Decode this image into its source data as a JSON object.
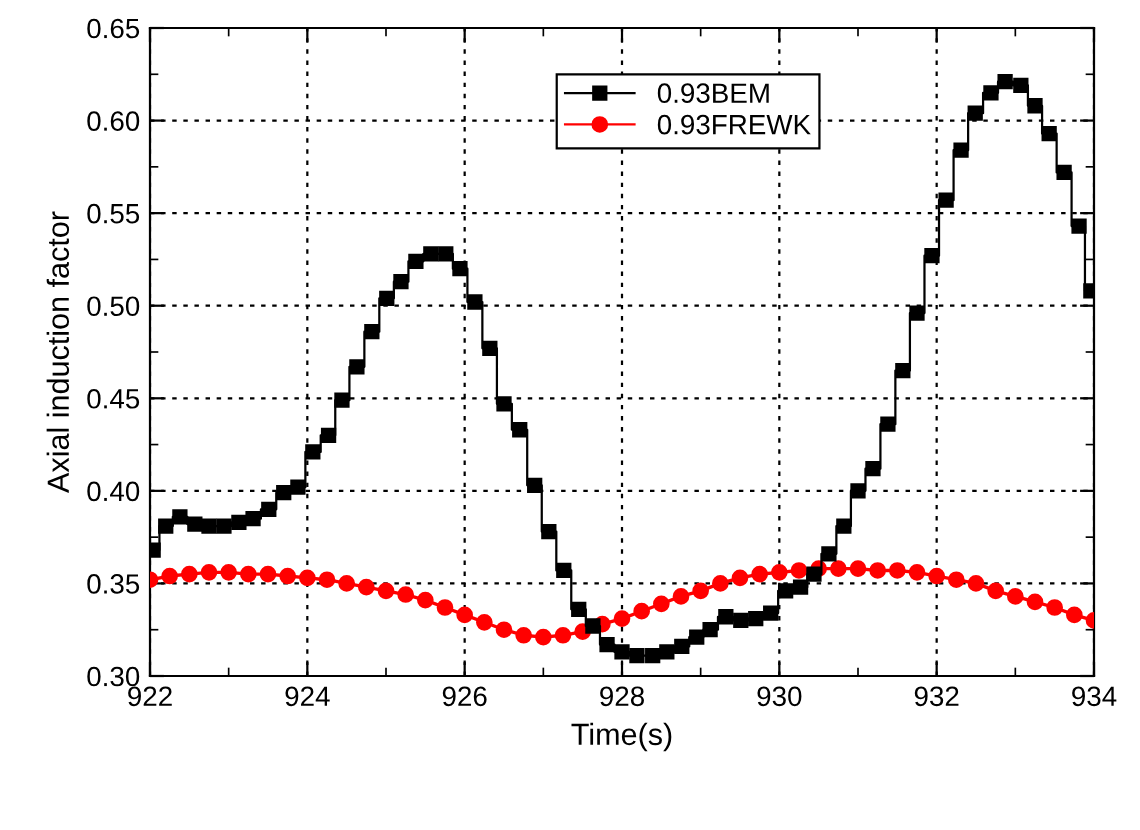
{
  "chart_data": {
    "type": "line",
    "xlabel": "Time(s)",
    "ylabel": "Axial induction factor",
    "xlim": [
      922,
      934
    ],
    "xticks": [
      922,
      924,
      926,
      928,
      930,
      932,
      934
    ],
    "ylim": [
      0.3,
      0.65
    ],
    "yticks": [
      {
        "value": 0.3,
        "label": "0.30"
      },
      0.35,
      {
        "value": 0.4,
        "label": "0.40"
      },
      0.45,
      {
        "value": 0.5,
        "label": "0.50"
      },
      0.55,
      {
        "value": 0.6,
        "label": "0.60"
      },
      0.65
    ],
    "grid": true,
    "legend": "top",
    "series": [
      {
        "name": "0.93BEM",
        "type": "step",
        "marker": "square",
        "color": "#000000",
        "x": [
          922.04,
          922.2,
          922.38,
          922.57,
          922.75,
          922.94,
          923.13,
          923.31,
          923.51,
          923.7,
          923.88,
          924.07,
          924.27,
          924.44,
          924.63,
          924.82,
          925.01,
          925.19,
          925.38,
          925.57,
          925.76,
          925.94,
          926.13,
          926.32,
          926.5,
          926.7,
          926.89,
          927.07,
          927.26,
          927.45,
          927.63,
          927.81,
          928.0,
          928.19,
          928.39,
          928.57,
          928.76,
          928.95,
          929.12,
          929.32,
          929.51,
          929.7,
          929.89,
          930.08,
          930.27,
          930.44,
          930.63,
          930.82,
          931.0,
          931.19,
          931.38,
          931.57,
          931.75,
          931.94,
          932.12,
          932.31,
          932.49,
          932.69,
          932.87,
          933.07,
          933.25,
          933.43,
          933.62,
          933.81,
          933.96
        ],
        "values": [
          0.368,
          0.381,
          0.386,
          0.382,
          0.381,
          0.381,
          0.383,
          0.385,
          0.39,
          0.399,
          0.402,
          0.421,
          0.43,
          0.449,
          0.467,
          0.486,
          0.504,
          0.513,
          0.524,
          0.528,
          0.528,
          0.52,
          0.502,
          0.477,
          0.447,
          0.433,
          0.403,
          0.378,
          0.357,
          0.336,
          0.327,
          0.317,
          0.313,
          0.311,
          0.311,
          0.313,
          0.316,
          0.321,
          0.325,
          0.332,
          0.33,
          0.331,
          0.334,
          0.346,
          0.348,
          0.355,
          0.366,
          0.381,
          0.4,
          0.412,
          0.436,
          0.465,
          0.496,
          0.527,
          0.557,
          0.584,
          0.604,
          0.615,
          0.621,
          0.619,
          0.608,
          0.593,
          0.572,
          0.543,
          0.508
        ]
      },
      {
        "name": "0.93FREWK",
        "marker": "circle",
        "color": "#ff0000",
        "x": [
          922,
          922.25,
          922.5,
          922.75,
          923,
          923.25,
          923.5,
          923.75,
          924,
          924.25,
          924.5,
          924.75,
          925,
          925.25,
          925.5,
          925.75,
          926,
          926.25,
          926.5,
          926.75,
          927,
          927.25,
          927.5,
          927.75,
          928,
          928.25,
          928.5,
          928.75,
          929,
          929.25,
          929.5,
          929.75,
          930,
          930.25,
          930.5,
          930.75,
          931,
          931.25,
          931.5,
          931.75,
          932,
          932.25,
          932.5,
          932.75,
          933,
          933.25,
          933.5,
          933.75,
          934
        ],
        "values": [
          0.352,
          0.354,
          0.355,
          0.356,
          0.356,
          0.355,
          0.355,
          0.354,
          0.353,
          0.352,
          0.35,
          0.348,
          0.346,
          0.344,
          0.341,
          0.337,
          0.333,
          0.329,
          0.325,
          0.322,
          0.321,
          0.322,
          0.324,
          0.328,
          0.331,
          0.335,
          0.339,
          0.343,
          0.346,
          0.35,
          0.353,
          0.355,
          0.356,
          0.357,
          0.358,
          0.358,
          0.358,
          0.357,
          0.357,
          0.356,
          0.354,
          0.352,
          0.35,
          0.346,
          0.343,
          0.34,
          0.337,
          0.333,
          0.33
        ]
      }
    ]
  }
}
